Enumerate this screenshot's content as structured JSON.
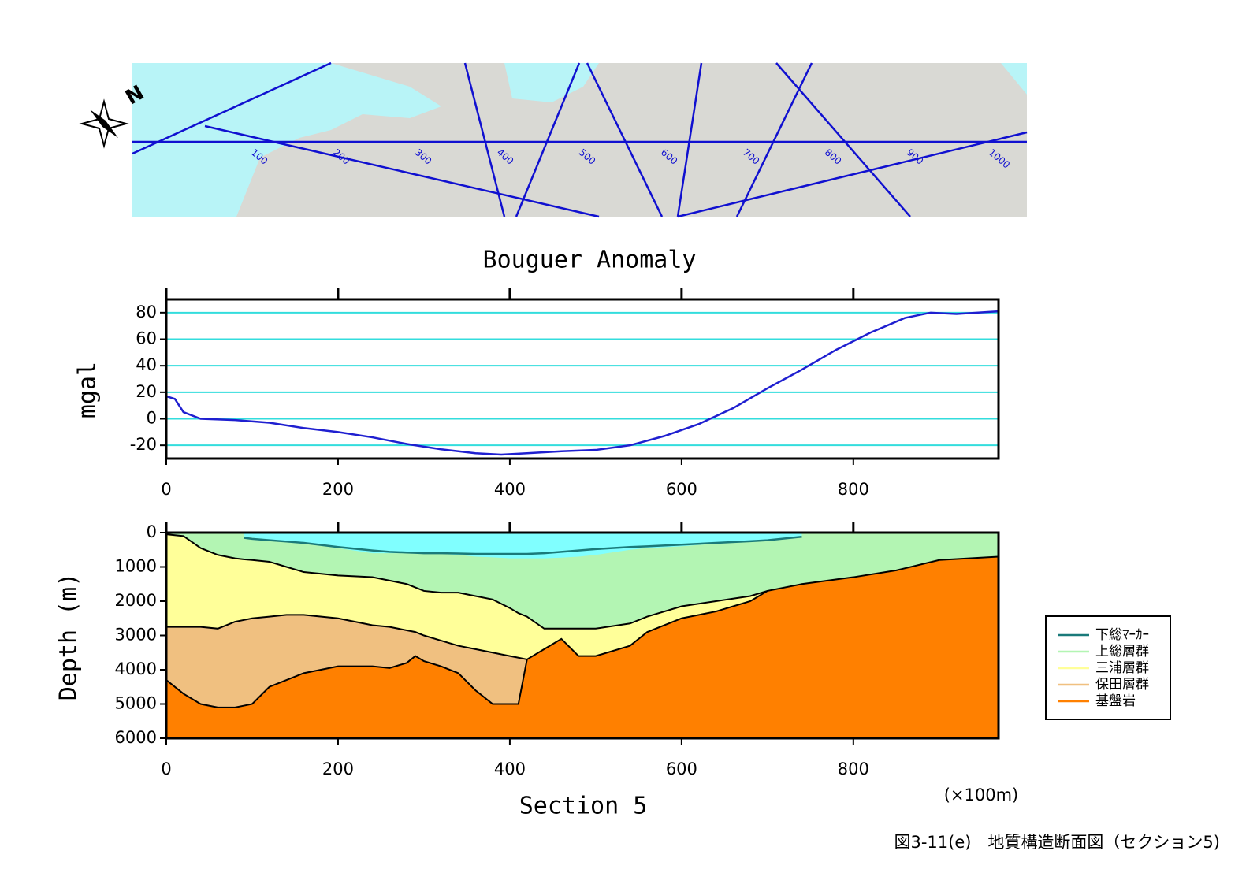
{
  "map": {
    "compass": "N",
    "labels": [
      "100",
      "200",
      "300",
      "400",
      "500",
      "600",
      "700",
      "800",
      "900",
      "1000"
    ]
  },
  "chart_data": [
    {
      "type": "line",
      "title": "Bouguer Anomaly",
      "ylabel": "mgal",
      "x": [
        0,
        10,
        20,
        40,
        80,
        120,
        160,
        200,
        240,
        280,
        320,
        360,
        390,
        420,
        460,
        500,
        540,
        580,
        620,
        660,
        700,
        740,
        780,
        820,
        860,
        890,
        920,
        969
      ],
      "series": [
        {
          "color": "#1f1fd0",
          "values": [
            17,
            15,
            5,
            0,
            -1,
            -3,
            -7,
            -10,
            -14,
            -19,
            -23,
            -26,
            -27,
            -26,
            -24.5,
            -23.5,
            -20,
            -13,
            -4,
            8,
            23,
            37,
            52,
            65,
            76,
            80,
            79,
            81
          ]
        }
      ],
      "xlim": [
        0,
        969
      ],
      "xticks": [
        0,
        200,
        400,
        600,
        800
      ],
      "ylim": [
        -30,
        90
      ],
      "yticks": [
        -20,
        0,
        20,
        40,
        60,
        80
      ],
      "grid": true,
      "grid_color": "#33dddd"
    },
    {
      "type": "section",
      "xlabel": "Section 5",
      "x_unit": "(×100m)",
      "ylabel": "Depth (m)",
      "x": [
        0,
        20,
        40,
        60,
        80,
        90,
        100,
        120,
        140,
        160,
        200,
        240,
        260,
        280,
        290,
        300,
        320,
        340,
        360,
        380,
        400,
        410,
        420,
        440,
        460,
        480,
        500,
        540,
        560,
        600,
        640,
        680,
        700,
        740,
        800,
        850,
        900,
        969
      ],
      "series": [
        {
          "name": "下総ﾏｰｶｰ",
          "color": "#1a7a7a",
          "style": "line",
          "values": [
            null,
            null,
            null,
            null,
            null,
            150,
            180,
            220,
            260,
            300,
            420,
            520,
            560,
            580,
            590,
            600,
            600,
            610,
            620,
            620,
            620,
            620,
            620,
            600,
            560,
            520,
            480,
            420,
            400,
            350,
            300,
            250,
            220,
            120,
            null,
            null,
            null,
            null
          ]
        },
        {
          "name": "上総層群",
          "color": "#b3f5b3",
          "style": "fill",
          "values": [
            0,
            0,
            0,
            0,
            0,
            0,
            0,
            0,
            0,
            0,
            0,
            0,
            0,
            0,
            0,
            0,
            0,
            0,
            0,
            0,
            0,
            0,
            0,
            0,
            0,
            0,
            0,
            0,
            0,
            0,
            0,
            0,
            0,
            0,
            0,
            0,
            0,
            0
          ]
        },
        {
          "name": "三浦層群",
          "color": "#ffff99",
          "style": "fill",
          "values": [
            50,
            100,
            450,
            650,
            750,
            780,
            800,
            850,
            1000,
            1150,
            1250,
            1300,
            1400,
            1500,
            1600,
            1700,
            1750,
            1750,
            1850,
            1950,
            2200,
            2350,
            2450,
            2800,
            2800,
            2800,
            2800,
            2650,
            2450,
            2150,
            2000,
            1850,
            1700,
            null,
            null,
            null,
            null,
            null
          ]
        },
        {
          "name": "保田層群",
          "color": "#f0c080",
          "style": "fill",
          "values": [
            2750,
            2750,
            2750,
            2800,
            2600,
            2550,
            2500,
            2450,
            2400,
            2400,
            2500,
            2700,
            2750,
            2850,
            2900,
            3000,
            3150,
            3300,
            3400,
            3500,
            3600,
            3650,
            3700,
            null,
            null,
            null,
            null,
            null,
            null,
            null,
            null,
            null,
            null,
            null,
            null,
            null,
            null,
            null
          ]
        },
        {
          "name": "基盤岩",
          "color": "#ff8000",
          "style": "fill",
          "values": [
            4300,
            4700,
            5000,
            5100,
            5100,
            5050,
            5000,
            4500,
            4300,
            4100,
            3900,
            3900,
            3950,
            3800,
            3600,
            3750,
            3900,
            4100,
            4600,
            5000,
            5000,
            5000,
            3700,
            3400,
            3100,
            3600,
            3600,
            3300,
            2900,
            2500,
            2300,
            2000,
            1700,
            1500,
            1300,
            1100,
            800,
            700
          ]
        },
        {
          "color": "#80ffff",
          "style": "fill",
          "values": [
            null,
            null,
            null,
            null,
            null,
            100,
            150,
            200,
            250,
            300,
            450,
            600,
            600,
            600,
            600,
            600,
            620,
            650,
            700,
            720,
            750,
            750,
            750,
            750,
            730,
            700,
            650,
            500,
            450,
            400,
            320,
            250,
            200,
            100,
            null,
            null,
            null,
            null
          ]
        }
      ],
      "xlim": [
        0,
        969
      ],
      "xticks": [
        0,
        200,
        400,
        600,
        800
      ],
      "ylim": [
        6000,
        0
      ],
      "yticks": [
        0,
        1000,
        2000,
        3000,
        4000,
        5000,
        6000
      ],
      "legend": "right"
    }
  ],
  "caption": "図3-11(e)　地質構造断面図（セクション5)"
}
